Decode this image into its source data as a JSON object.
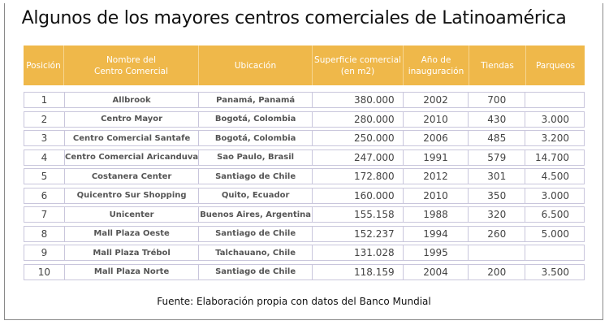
{
  "title": "Algunos de los mayores centros comerciales de Latinoamérica",
  "headers": [
    "Posición",
    "Nombre del\nCentro Comercial",
    "Ubicación",
    "Superficie comercial\n(en m2)",
    "Año de\ninauguración",
    "Tiendas",
    "Parqueos"
  ],
  "rows": [
    [
      "1",
      "Allbrook",
      "Panamá, Panamá",
      "380.000",
      "2002",
      "700",
      ""
    ],
    [
      "2",
      "Centro Mayor",
      "Bogotá, Colombia",
      "280.000",
      "2010",
      "430",
      "3.000"
    ],
    [
      "3",
      "Centro Comercial Santafe",
      "Bogotá, Colombia",
      "250.000",
      "2006",
      "485",
      "3.200"
    ],
    [
      "4",
      "Centro Comercial Aricanduva",
      "Sao Paulo, Brasil",
      "247.000",
      "1991",
      "579",
      "14.700"
    ],
    [
      "5",
      "Costanera Center",
      "Santiago de Chile",
      "172.800",
      "2012",
      "301",
      "4.500"
    ],
    [
      "6",
      "Quicentro Sur Shopping",
      "Quito, Ecuador",
      "160.000",
      "2010",
      "350",
      "3.000"
    ],
    [
      "7",
      "Unicenter",
      "Buenos Aires, Argentina",
      "155.158",
      "1988",
      "320",
      "6.500"
    ],
    [
      "8",
      "Mall Plaza Oeste",
      "Santiago de Chile",
      "152.237",
      "1994",
      "260",
      "5.000"
    ],
    [
      "9",
      "Mall Plaza Trébol",
      "Talchauano, Chile",
      "131.028",
      "1995",
      "",
      ""
    ],
    [
      "10",
      "Mall Plaza Norte",
      "Santiago de Chile",
      "118.159",
      "2004",
      "200",
      "3.500"
    ]
  ],
  "source": "Fuente: Elaboración propia con datos del Banco Mundial"
}
